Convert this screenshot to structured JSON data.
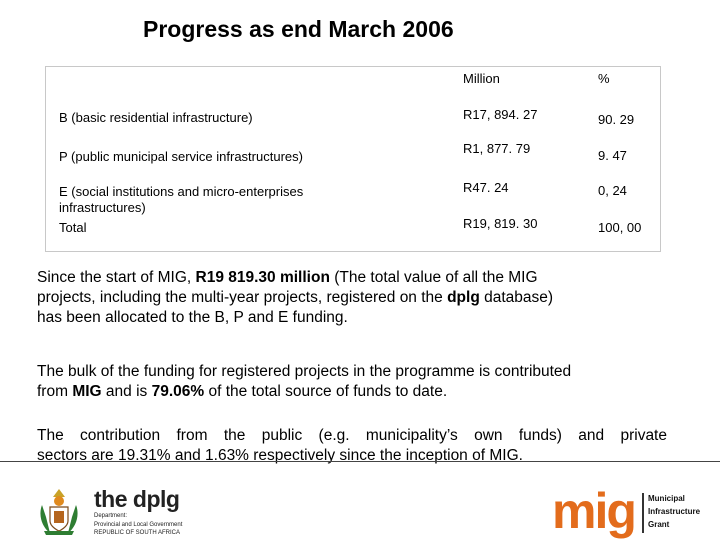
{
  "title": "Progress as end March 2006",
  "table": {
    "headers": {
      "million": "Million",
      "percent": "%"
    },
    "rows": [
      {
        "label": "B (basic residential infrastructure)",
        "million": "R17, 894. 27",
        "percent": "90. 29"
      },
      {
        "label": "P (public municipal service infrastructures)",
        "million": "R1, 877. 79",
        "percent": "9. 47"
      },
      {
        "label_line1": "E (social institutions and micro-enterprises",
        "label_line2": "infrastructures)",
        "million": "R47. 24",
        "percent": "0, 24"
      },
      {
        "label": "Total",
        "million": "R19, 819. 30",
        "percent": "100, 00"
      }
    ]
  },
  "paragraphs": {
    "p1": {
      "a": "Since the start of MIG, ",
      "b": "R19 819.30 million",
      "c": " (The total value of all the MIG",
      "d": "projects, including the multi-year projects, registered on the ",
      "e": "dplg",
      "f": " database)",
      "g": "has been allocated to the B, P and E funding."
    },
    "p2": {
      "a": "The bulk of the funding for registered projects in the programme is contributed",
      "b": "from ",
      "c": "MIG",
      "d": " and is ",
      "e": "79.06%",
      "f": " of the total source of funds to date."
    },
    "p3": {
      "line1": "The contribution from the public (e.g. municipality’s own funds) and private",
      "line2": "sectors are 19.31% and 1.63% respectively since the inception of MIG."
    }
  },
  "footer": {
    "dplg": {
      "the": "the ",
      "name": "dplg",
      "line1": "Department:",
      "line2": "Provincial and Local Government",
      "line3": "REPUBLIC OF SOUTH AFRICA"
    },
    "mig": {
      "word": "mig",
      "line1": "Municipal",
      "line2": "Infrastructure",
      "line3": "Grant"
    }
  },
  "colors": {
    "mig_orange": "#e36c1c",
    "table_border": "#c8c8c8"
  }
}
